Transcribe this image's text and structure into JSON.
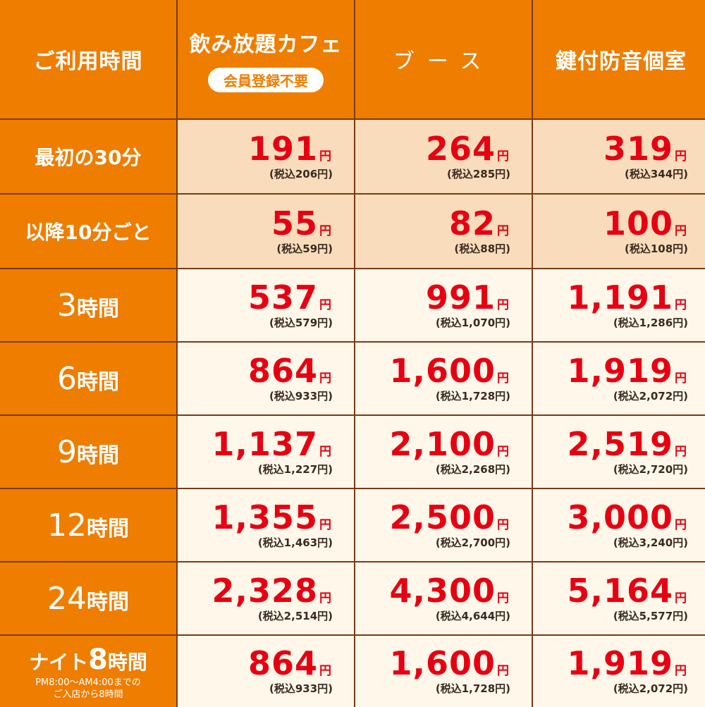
{
  "header": {
    "usage_time": "ご利用時間",
    "col1": "飲み放題カフェ",
    "col1_badge": "会員登録不要",
    "col2": "ブース",
    "col3": "鍵付防音個室"
  },
  "yen": "円",
  "rows": [
    {
      "label": "最初の30分",
      "cells": [
        {
          "price": "191",
          "tax": "(税込206円)"
        },
        {
          "price": "264",
          "tax": "(税込285円)"
        },
        {
          "price": "319",
          "tax": "(税込344円)"
        }
      ]
    },
    {
      "label": "以降10分ごと",
      "cells": [
        {
          "price": "55",
          "tax": "(税込59円)"
        },
        {
          "price": "82",
          "tax": "(税込88円)"
        },
        {
          "price": "100",
          "tax": "(税込108円)"
        }
      ]
    },
    {
      "label_num": "3",
      "label_suffix": "時間",
      "cells": [
        {
          "price": "537",
          "tax": "(税込579円)"
        },
        {
          "price": "991",
          "tax": "(税込1,070円)"
        },
        {
          "price": "1,191",
          "tax": "(税込1,286円)"
        }
      ]
    },
    {
      "label_num": "6",
      "label_suffix": "時間",
      "cells": [
        {
          "price": "864",
          "tax": "(税込933円)"
        },
        {
          "price": "1,600",
          "tax": "(税込1,728円)"
        },
        {
          "price": "1,919",
          "tax": "(税込2,072円)"
        }
      ]
    },
    {
      "label_num": "9",
      "label_suffix": "時間",
      "cells": [
        {
          "price": "1,137",
          "tax": "(税込1,227円)"
        },
        {
          "price": "2,100",
          "tax": "(税込2,268円)"
        },
        {
          "price": "2,519",
          "tax": "(税込2,720円)"
        }
      ]
    },
    {
      "label_num": "12",
      "label_suffix": "時間",
      "cells": [
        {
          "price": "1,355",
          "tax": "(税込1,463円)"
        },
        {
          "price": "2,500",
          "tax": "(税込2,700円)"
        },
        {
          "price": "3,000",
          "tax": "(税込3,240円)"
        }
      ]
    },
    {
      "label_num": "24",
      "label_suffix": "時間",
      "cells": [
        {
          "price": "2,328",
          "tax": "(税込2,514円)"
        },
        {
          "price": "4,300",
          "tax": "(税込4,644円)"
        },
        {
          "price": "5,164",
          "tax": "(税込5,577円)"
        }
      ]
    },
    {
      "night_prefix": "ナイト",
      "night_num": "8",
      "night_suffix": "時間",
      "note1": "PM8:00〜AM4:00までの",
      "note2": "ご入店から8時間",
      "cells": [
        {
          "price": "864",
          "tax": "(税込933円)"
        },
        {
          "price": "1,600",
          "tax": "(税込1,728円)"
        },
        {
          "price": "1,919",
          "tax": "(税込2,072円)"
        }
      ]
    }
  ],
  "colors": {
    "header_orange": "#ee7d00",
    "price_red": "#e60012",
    "tan_bg": "#f9dcbb",
    "cream_bg": "#fff7e9",
    "border": "#7a3a16"
  }
}
